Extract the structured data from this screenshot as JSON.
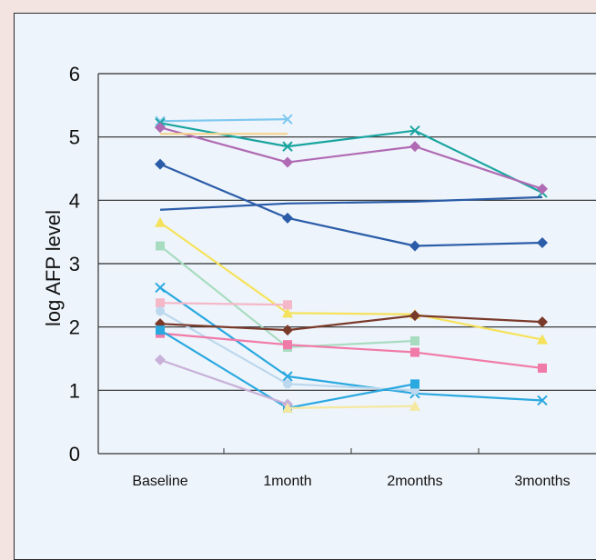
{
  "chart_data": {
    "type": "line",
    "title": "",
    "xlabel": "",
    "ylabel": "log AFP level",
    "categories": [
      "Baseline",
      "1month",
      "2months",
      "3months"
    ],
    "ylim": [
      0,
      6
    ],
    "yticks": [
      0,
      1,
      2,
      3,
      4,
      5,
      6
    ],
    "grid": "horizontal",
    "legend": "none",
    "series": [
      {
        "values": [
          5.25,
          5.28,
          null,
          null
        ],
        "color": "#7ec8f0",
        "marker": "x"
      },
      {
        "values": [
          5.22,
          4.85,
          5.1,
          4.12
        ],
        "color": "#1aa5a0",
        "marker": "x"
      },
      {
        "values": [
          5.15,
          4.6,
          4.85,
          4.18
        ],
        "color": "#b06ab3",
        "marker": "diamond"
      },
      {
        "values": [
          5.05,
          5.05,
          null,
          null
        ],
        "color": "#f5d28a",
        "marker": "none"
      },
      {
        "values": [
          4.57,
          3.72,
          3.28,
          3.33
        ],
        "color": "#2a5ca8",
        "marker": "diamond"
      },
      {
        "values": [
          3.85,
          3.95,
          3.98,
          4.05
        ],
        "color": "#2a5ca8",
        "marker": "none"
      },
      {
        "values": [
          3.65,
          2.22,
          2.2,
          1.8
        ],
        "color": "#f5e25a",
        "marker": "triangle"
      },
      {
        "values": [
          3.28,
          1.68,
          1.78,
          null
        ],
        "color": "#a8dcc0",
        "marker": "square"
      },
      {
        "values": [
          2.62,
          1.22,
          0.95,
          0.84
        ],
        "color": "#2aa8e0",
        "marker": "x"
      },
      {
        "values": [
          2.38,
          2.35,
          null,
          null
        ],
        "color": "#f5b8c8",
        "marker": "square"
      },
      {
        "values": [
          2.25,
          1.1,
          1.0,
          null
        ],
        "color": "#bcd8ee",
        "marker": "circle"
      },
      {
        "values": [
          2.05,
          1.95,
          2.18,
          2.08
        ],
        "color": "#7a3a2a",
        "marker": "diamond"
      },
      {
        "values": [
          1.9,
          1.72,
          1.6,
          1.35
        ],
        "color": "#f07aa8",
        "marker": "square"
      },
      {
        "values": [
          1.95,
          0.72,
          1.1,
          null
        ],
        "color": "#2aa8e0",
        "marker": "square"
      },
      {
        "values": [
          1.48,
          0.78,
          null,
          null
        ],
        "color": "#c8b0d8",
        "marker": "diamond"
      },
      {
        "values": [
          null,
          0.72,
          0.75,
          null
        ],
        "color": "#f5e8a0",
        "marker": "triangle"
      }
    ]
  }
}
